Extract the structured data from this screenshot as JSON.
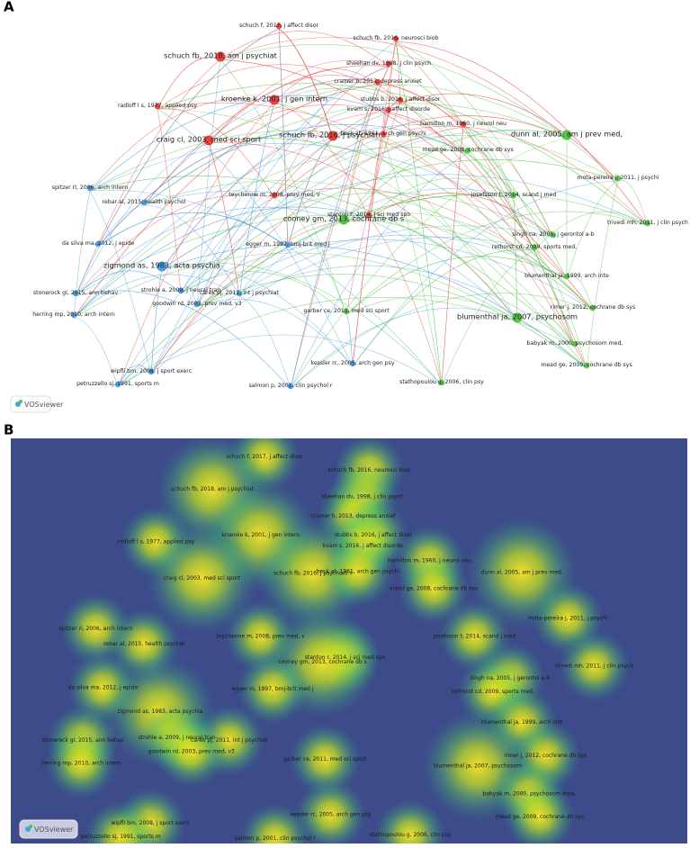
{
  "panels": [
    {
      "label": "A"
    },
    {
      "label": "B"
    }
  ],
  "logo": "VOSviewer",
  "nodes": [
    {
      "label": "schuch f, 2017, j affect disor",
      "color": "#e8423f"
    },
    {
      "label": "schuch fb, 2016, neurosci biob",
      "color": "#e8423f"
    },
    {
      "label": "schuch fb, 2018, am j psychiat",
      "color": "#e8423f"
    },
    {
      "label": "sheehan dv, 1998, j clin psych",
      "color": "#e8423f"
    },
    {
      "label": "cramer h, 2013, depress anxiet",
      "color": "#e8423f"
    },
    {
      "label": "radloff l s, 1977, applied psy",
      "color": "#e8423f"
    },
    {
      "label": "kroenke k, 2001, j gen intern",
      "color": "#e8423f"
    },
    {
      "label": "stubbs b, 2016, j affect disor",
      "color": "#e8423f"
    },
    {
      "label": "kvam s, 2016, j affect disorde",
      "color": "#e8423f"
    },
    {
      "label": "hamilton m, 1960, j neurol neu",
      "color": "#e8423f"
    },
    {
      "label": "craig cl, 2003, med sci sport",
      "color": "#e8423f"
    },
    {
      "label": "schuch fb, 2016, j psychiatr r",
      "color": "#e8423f"
    },
    {
      "label": "beck at, 1961, arch gen psychi",
      "color": "#e8423f"
    },
    {
      "label": "teychenne m, 2008, prev med, v",
      "color": "#e8423f"
    },
    {
      "label": "dunn al, 2005, am j prev med,",
      "color": "#55c24a"
    },
    {
      "label": "mead ge, 2008, cochrane db sys",
      "color": "#55c24a"
    },
    {
      "label": "mota-pereira j, 2011, j psychi",
      "color": "#55c24a"
    },
    {
      "label": "josefsson t, 2014, scand j med",
      "color": "#55c24a"
    },
    {
      "label": "trivedi mh, 2011, j clin psych",
      "color": "#55c24a"
    },
    {
      "label": "singh na, 2005, j gerontol a-b",
      "color": "#55c24a"
    },
    {
      "label": "stanton r, 2014, j sci med spo",
      "color": "#e8423f"
    },
    {
      "label": "cooney gm, 2013, cochrane db s",
      "color": "#55c24a"
    },
    {
      "label": "egger m, 1997, bmj-brit med j",
      "color": "#4a9fe0"
    },
    {
      "label": "rethorst cd, 2009, sports med,",
      "color": "#55c24a"
    },
    {
      "label": "blumenthal ja, 1999, arch inte",
      "color": "#55c24a"
    },
    {
      "label": "rimer j, 2012, cochrane db sys",
      "color": "#55c24a"
    },
    {
      "label": "blumenthal ja, 2007, psychosom",
      "color": "#55c24a"
    },
    {
      "label": "garber ce, 2011, med sci sport",
      "color": "#55c24a"
    },
    {
      "label": "babyak m, 2000, psychosom med,",
      "color": "#55c24a"
    },
    {
      "label": "mead ge, 2009, cochrane db sys",
      "color": "#55c24a"
    },
    {
      "label": "stathopoulou g, 2006, clin psy",
      "color": "#55c24a"
    },
    {
      "label": "spitzer rl, 2006, arch intern",
      "color": "#4a9fe0"
    },
    {
      "label": "rebar al, 2015, health psychol",
      "color": "#4a9fe0"
    },
    {
      "label": "da silva ma, 2012, j epide",
      "color": "#4a9fe0"
    },
    {
      "label": "zigmond as, 1983, acta psychia",
      "color": "#4a9fe0"
    },
    {
      "label": "strohle a, 2009, j neural tran",
      "color": "#4a9fe0"
    },
    {
      "label": "stonerock gl, 2015, ann behav",
      "color": "#4a9fe0"
    },
    {
      "label": "carek pj, 2011, int j psychiat",
      "color": "#4a9fe0"
    },
    {
      "label": "goodwin rd, 2003, prev med, v3",
      "color": "#4a9fe0"
    },
    {
      "label": "herring mp, 2010, arch intern",
      "color": "#4a9fe0"
    },
    {
      "label": "kessler rc, 2005, arch gen psy",
      "color": "#4a9fe0"
    },
    {
      "label": "wipfli bm, 2008, j sport exerc",
      "color": "#4a9fe0"
    },
    {
      "label": "petruzzello sj, 1991, sports m",
      "color": "#4a9fe0"
    },
    {
      "label": "salmon p, 2001, clin psychol r",
      "color": "#4a9fe0"
    }
  ]
}
